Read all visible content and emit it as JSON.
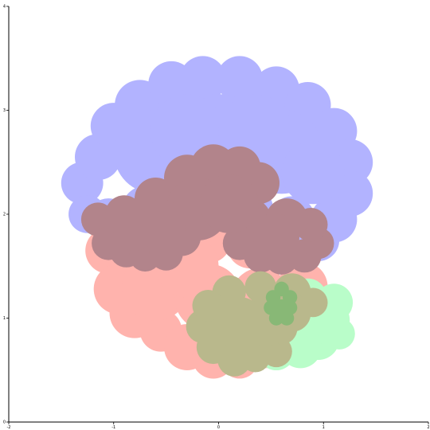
{
  "chart_data": {
    "type": "area",
    "title": "",
    "xlabel": "",
    "ylabel": "",
    "xlim": [
      -2,
      2
    ],
    "ylim": [
      0,
      4
    ],
    "x_ticks": [
      -2,
      -1,
      0,
      1,
      2
    ],
    "y_ticks": [
      0,
      1,
      2,
      3,
      4
    ],
    "x_tick_labels": [
      "-2",
      "-1",
      "0",
      "1",
      "2"
    ],
    "y_tick_labels": [
      "0",
      "1",
      "2",
      "3",
      "4"
    ],
    "grid": false,
    "legend": "none",
    "series": [
      {
        "color": "#ffb3ad",
        "circles": [
          [
            -1.05,
            1.65,
            0.22
          ],
          [
            -0.95,
            1.28,
            0.24
          ],
          [
            -0.8,
            1.05,
            0.24
          ],
          [
            -0.55,
            0.88,
            0.2
          ],
          [
            -0.3,
            0.72,
            0.22
          ],
          [
            -0.05,
            0.62,
            0.2
          ],
          [
            0.2,
            0.6,
            0.18
          ],
          [
            0.45,
            0.7,
            0.18
          ],
          [
            0.7,
            0.95,
            0.22
          ],
          [
            0.8,
            1.3,
            0.24
          ],
          [
            0.7,
            1.6,
            0.2
          ],
          [
            0.3,
            1.7,
            0.22
          ],
          [
            -0.1,
            1.75,
            0.22
          ],
          [
            -0.5,
            1.7,
            0.22
          ],
          [
            -0.9,
            1.8,
            0.2
          ],
          [
            -0.6,
            1.3,
            0.32
          ],
          [
            -0.1,
            1.2,
            0.32
          ],
          [
            0.4,
            1.2,
            0.28
          ],
          [
            -0.3,
            1.5,
            0.3
          ]
        ]
      },
      {
        "color": "#b2b3ff",
        "circles": [
          [
            -1.3,
            2.3,
            0.2
          ],
          [
            -1.25,
            2.0,
            0.18
          ],
          [
            -1.15,
            2.55,
            0.22
          ],
          [
            -1.0,
            2.85,
            0.22
          ],
          [
            -0.75,
            3.05,
            0.24
          ],
          [
            -0.45,
            3.25,
            0.22
          ],
          [
            -0.15,
            3.3,
            0.22
          ],
          [
            0.2,
            3.3,
            0.22
          ],
          [
            0.55,
            3.2,
            0.22
          ],
          [
            0.85,
            3.05,
            0.22
          ],
          [
            1.1,
            2.8,
            0.22
          ],
          [
            1.25,
            2.5,
            0.22
          ],
          [
            1.25,
            2.2,
            0.22
          ],
          [
            1.1,
            1.95,
            0.22
          ],
          [
            0.95,
            1.75,
            0.2
          ],
          [
            0.7,
            1.95,
            0.22
          ],
          [
            0.3,
            2.05,
            0.22
          ],
          [
            -0.2,
            2.15,
            0.22
          ],
          [
            -0.7,
            2.05,
            0.22
          ],
          [
            -1.05,
            1.95,
            0.2
          ],
          [
            -0.6,
            2.6,
            0.4
          ],
          [
            0.0,
            2.7,
            0.45
          ],
          [
            0.6,
            2.6,
            0.4
          ],
          [
            -0.3,
            2.8,
            0.35
          ],
          [
            0.35,
            2.8,
            0.35
          ],
          [
            0.9,
            2.4,
            0.3
          ]
        ]
      },
      {
        "color": "#b9fdc9",
        "circles": [
          [
            1.05,
            0.98,
            0.2
          ],
          [
            1.1,
            1.15,
            0.18
          ],
          [
            0.95,
            0.8,
            0.2
          ],
          [
            0.78,
            0.72,
            0.2
          ],
          [
            0.55,
            0.68,
            0.18
          ],
          [
            0.45,
            0.85,
            0.2
          ],
          [
            0.7,
            1.0,
            0.22
          ],
          [
            0.85,
            1.2,
            0.18
          ],
          [
            1.15,
            0.85,
            0.15
          ]
        ]
      },
      {
        "color": "#b2848b",
        "circles": [
          [
            -1.15,
            1.95,
            0.16
          ],
          [
            -1.05,
            1.72,
            0.16
          ],
          [
            -0.88,
            1.65,
            0.16
          ],
          [
            -0.7,
            1.6,
            0.15
          ],
          [
            -0.5,
            1.62,
            0.16
          ],
          [
            -0.35,
            1.78,
            0.18
          ],
          [
            -0.6,
            2.15,
            0.2
          ],
          [
            -0.3,
            2.35,
            0.22
          ],
          [
            -0.05,
            2.45,
            0.22
          ],
          [
            0.2,
            2.45,
            0.2
          ],
          [
            0.38,
            2.3,
            0.2
          ],
          [
            0.3,
            1.95,
            0.2
          ],
          [
            0.2,
            1.72,
            0.16
          ],
          [
            0.4,
            1.6,
            0.16
          ],
          [
            0.6,
            1.58,
            0.16
          ],
          [
            0.82,
            1.6,
            0.16
          ],
          [
            0.95,
            1.72,
            0.15
          ],
          [
            0.88,
            1.9,
            0.16
          ],
          [
            0.65,
            1.95,
            0.2
          ],
          [
            -0.9,
            2.0,
            0.18
          ],
          [
            -0.2,
            2.05,
            0.3
          ],
          [
            0.1,
            2.1,
            0.28
          ],
          [
            -0.55,
            1.9,
            0.24
          ],
          [
            0.55,
            1.78,
            0.22
          ],
          [
            -0.8,
            1.85,
            0.2
          ]
        ]
      },
      {
        "color": "#b9b88c",
        "circles": [
          [
            -0.15,
            0.92,
            0.16
          ],
          [
            -0.05,
            0.72,
            0.16
          ],
          [
            0.15,
            0.6,
            0.16
          ],
          [
            0.35,
            0.62,
            0.14
          ],
          [
            0.55,
            0.68,
            0.15
          ],
          [
            0.6,
            0.9,
            0.15
          ],
          [
            0.5,
            1.15,
            0.18
          ],
          [
            0.7,
            1.25,
            0.18
          ],
          [
            0.9,
            1.15,
            0.14
          ],
          [
            0.4,
            1.3,
            0.15
          ],
          [
            0.1,
            1.25,
            0.16
          ],
          [
            -0.1,
            1.12,
            0.15
          ],
          [
            0.2,
            0.95,
            0.25
          ],
          [
            0.45,
            0.95,
            0.22
          ],
          [
            0.7,
            1.05,
            0.18
          ]
        ]
      },
      {
        "color": "#88b876",
        "circles": [
          [
            0.52,
            1.2,
            0.07
          ],
          [
            0.6,
            1.28,
            0.07
          ],
          [
            0.68,
            1.2,
            0.07
          ],
          [
            0.6,
            1.1,
            0.08
          ],
          [
            0.5,
            1.1,
            0.07
          ],
          [
            0.68,
            1.1,
            0.07
          ],
          [
            0.55,
            1.0,
            0.07
          ],
          [
            0.65,
            1.0,
            0.07
          ],
          [
            0.6,
            1.3,
            0.05
          ]
        ]
      }
    ]
  }
}
